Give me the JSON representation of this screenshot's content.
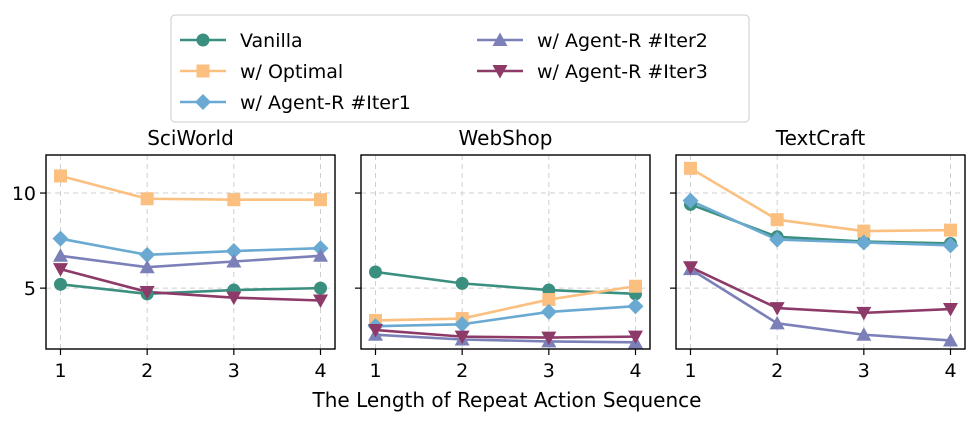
{
  "chart_data": {
    "type": "line",
    "xlabel": "The Length of Repeat Action Sequence",
    "shared_y_ticks": [
      5,
      10
    ],
    "legend": {
      "placement": "top-center",
      "columns": 2,
      "entries": [
        "Vanilla",
        "w/ Optimal",
        "w/ Agent-R #Iter1",
        "w/ Agent-R #Iter2",
        "w/ Agent-R #Iter3"
      ]
    },
    "series_styles": [
      {
        "name": "Vanilla",
        "color": "#3b8f7f",
        "marker": "circle"
      },
      {
        "name": "w/ Optimal",
        "color": "#fbbf80",
        "marker": "square"
      },
      {
        "name": "w/ Agent-R #Iter1",
        "color": "#6aa9d1",
        "marker": "diamond"
      },
      {
        "name": "w/ Agent-R #Iter2",
        "color": "#7c80b8",
        "marker": "triangle-up"
      },
      {
        "name": "w/ Agent-R #Iter3",
        "color": "#8e3a68",
        "marker": "triangle-down"
      }
    ],
    "grid": true,
    "panels": [
      {
        "title": "SciWorld",
        "x": [
          1,
          2,
          3,
          4
        ],
        "ylim": [
          1.8,
          12.0
        ],
        "series": [
          {
            "name": "Vanilla",
            "values": [
              5.2,
              4.7,
              4.9,
              5.0
            ]
          },
          {
            "name": "w/ Optimal",
            "values": [
              10.9,
              9.7,
              9.65,
              9.65
            ]
          },
          {
            "name": "w/ Agent-R #Iter1",
            "values": [
              7.6,
              6.75,
              6.95,
              7.1
            ]
          },
          {
            "name": "w/ Agent-R #Iter2",
            "values": [
              6.7,
              6.1,
              6.4,
              6.7
            ]
          },
          {
            "name": "w/ Agent-R #Iter3",
            "values": [
              6.0,
              4.8,
              4.5,
              4.35
            ]
          }
        ]
      },
      {
        "title": "WebShop",
        "x": [
          1,
          2,
          3,
          4
        ],
        "ylim": [
          1.8,
          12.0
        ],
        "series": [
          {
            "name": "Vanilla",
            "values": [
              5.85,
              5.25,
              4.9,
              4.7
            ]
          },
          {
            "name": "w/ Optimal",
            "values": [
              3.3,
              3.4,
              4.4,
              5.1
            ]
          },
          {
            "name": "w/ Agent-R #Iter1",
            "values": [
              3.0,
              3.1,
              3.75,
              4.05
            ]
          },
          {
            "name": "w/ Agent-R #Iter2",
            "values": [
              2.55,
              2.3,
              2.2,
              2.15
            ]
          },
          {
            "name": "w/ Agent-R #Iter3",
            "values": [
              2.8,
              2.45,
              2.4,
              2.45
            ]
          }
        ]
      },
      {
        "title": "TextCraft",
        "x": [
          1,
          2,
          3,
          4
        ],
        "ylim": [
          1.8,
          12.0
        ],
        "series": [
          {
            "name": "Vanilla",
            "values": [
              9.4,
              7.7,
              7.45,
              7.35
            ]
          },
          {
            "name": "w/ Optimal",
            "values": [
              11.3,
              8.6,
              8.0,
              8.05
            ]
          },
          {
            "name": "w/ Agent-R #Iter1",
            "values": [
              9.6,
              7.55,
              7.4,
              7.25
            ]
          },
          {
            "name": "w/ Agent-R #Iter2",
            "values": [
              6.0,
              3.15,
              2.55,
              2.25
            ]
          },
          {
            "name": "w/ Agent-R #Iter3",
            "values": [
              6.1,
              3.95,
              3.7,
              3.9
            ]
          }
        ]
      }
    ]
  }
}
